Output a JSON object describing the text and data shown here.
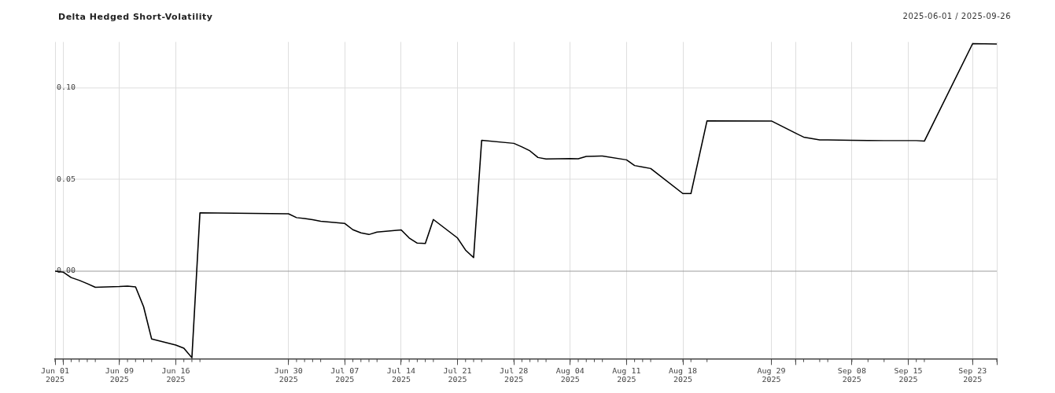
{
  "chart_data": {
    "type": "line",
    "title": "Delta Hedged Short-Volatility",
    "subtitle": "2025-06-01 / 2025-09-26",
    "x": [
      "2025-06-01",
      "2025-06-02",
      "2025-06-03",
      "2025-06-04",
      "2025-06-05",
      "2025-06-06",
      "2025-06-09",
      "2025-06-10",
      "2025-06-11",
      "2025-06-12",
      "2025-06-13",
      "2025-06-16",
      "2025-06-17",
      "2025-06-18",
      "2025-06-19",
      "2025-06-30",
      "2025-07-01",
      "2025-07-02",
      "2025-07-03",
      "2025-07-04",
      "2025-07-07",
      "2025-07-08",
      "2025-07-09",
      "2025-07-10",
      "2025-07-11",
      "2025-07-14",
      "2025-07-15",
      "2025-07-16",
      "2025-07-17",
      "2025-07-18",
      "2025-07-21",
      "2025-07-22",
      "2025-07-23",
      "2025-07-24",
      "2025-07-28",
      "2025-07-29",
      "2025-07-30",
      "2025-07-31",
      "2025-08-01",
      "2025-08-04",
      "2025-08-05",
      "2025-08-06",
      "2025-08-07",
      "2025-08-08",
      "2025-08-11",
      "2025-08-12",
      "2025-08-13",
      "2025-08-14",
      "2025-08-18",
      "2025-08-19",
      "2025-08-21",
      "2025-08-29",
      "2025-09-01",
      "2025-09-02",
      "2025-09-04",
      "2025-09-05",
      "2025-09-08",
      "2025-09-10",
      "2025-09-12",
      "2025-09-15",
      "2025-09-16",
      "2025-09-17",
      "2025-09-23",
      "2025-09-26"
    ],
    "series": [
      {
        "color": "#000000",
        "values": [
          0,
          -0.0005,
          -0.0035,
          -0.005,
          -0.0068,
          -0.0088,
          -0.0084,
          -0.0081,
          -0.0086,
          -0.0194,
          -0.037,
          -0.0403,
          -0.042,
          -0.0472,
          0.0318,
          0.0313,
          0.0292,
          0.0287,
          0.0281,
          0.0272,
          0.026,
          0.0226,
          0.0209,
          0.02,
          0.0213,
          0.0225,
          0.0181,
          0.0153,
          0.0151,
          0.0282,
          0.0181,
          0.0115,
          0.0074,
          0.0714,
          0.0697,
          0.0678,
          0.0656,
          0.062,
          0.0612,
          0.0614,
          0.0613,
          0.0626,
          0.0627,
          0.0628,
          0.0607,
          0.0576,
          0.0568,
          0.056,
          0.0423,
          0.0423,
          0.082,
          0.0819,
          0.0753,
          0.0731,
          0.0716,
          0.0716,
          0.0714,
          0.0713,
          0.0712,
          0.0712,
          0.0712,
          0.0709,
          0.1241,
          0.1239
        ]
      }
    ],
    "xlim": [
      "2025-06-01",
      "2025-09-26"
    ],
    "xticks": [
      {
        "value": "2025-06-01",
        "label": "Jun 01 2025"
      },
      {
        "value": "2025-06-02",
        "label": null
      },
      {
        "value": "2025-06-09",
        "label": "Jun 09 2025"
      },
      {
        "value": "2025-06-16",
        "label": "Jun 16 2025"
      },
      {
        "value": "2025-06-30",
        "label": "Jun 30 2025"
      },
      {
        "value": "2025-07-07",
        "label": "Jul 07 2025"
      },
      {
        "value": "2025-07-14",
        "label": "Jul 14 2025"
      },
      {
        "value": "2025-07-21",
        "label": "Jul 21 2025"
      },
      {
        "value": "2025-07-28",
        "label": "Jul 28 2025"
      },
      {
        "value": "2025-08-04",
        "label": "Aug 04 2025"
      },
      {
        "value": "2025-08-11",
        "label": "Aug 11 2025"
      },
      {
        "value": "2025-08-18",
        "label": "Aug 18 2025"
      },
      {
        "value": "2025-08-29",
        "label": "Aug 29 2025"
      },
      {
        "value": "2025-09-01",
        "label": null
      },
      {
        "value": "2025-09-08",
        "label": "Sep 08 2025"
      },
      {
        "value": "2025-09-15",
        "label": "Sep 15 2025"
      },
      {
        "value": "2025-09-23",
        "label": "Sep 23 2025"
      },
      {
        "value": "2025-09-26",
        "label": null
      }
    ],
    "ylim": [
      -0.048,
      0.125
    ],
    "yticks": [
      {
        "value": 0,
        "label": "0.00"
      },
      0.05,
      {
        "value": 0.1,
        "label": "0.10"
      }
    ],
    "grid": true,
    "legend": false,
    "marker": "none",
    "line_style": "solid"
  }
}
